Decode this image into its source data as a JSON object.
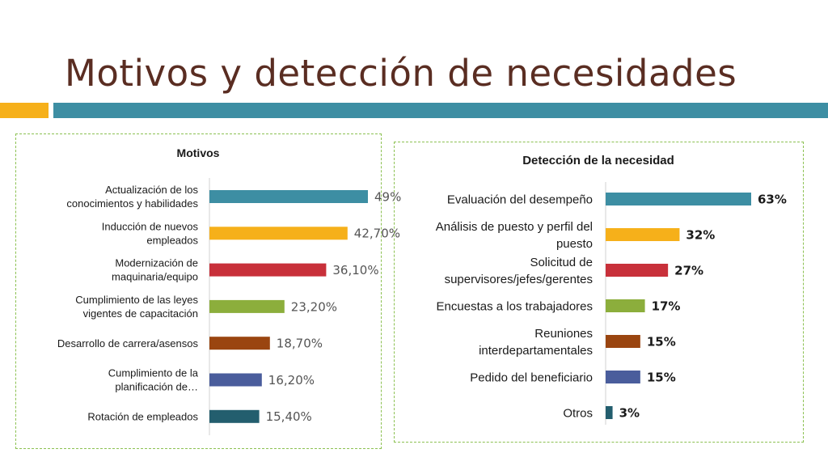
{
  "title": "Motivos y detección de necesidades",
  "colors": {
    "title": "#5a2d22",
    "band_left": "#f6b01a",
    "band_right": "#3d8ea3",
    "panel_border": "#8cc152"
  },
  "chart_data": [
    {
      "type": "bar",
      "orientation": "horizontal",
      "title": "Motivos",
      "categories": [
        [
          "Actualización de los",
          "conocimientos y habilidades"
        ],
        [
          "Inducción de nuevos",
          "empleados"
        ],
        [
          "Modernización de",
          "maquinaria/equipo"
        ],
        [
          "Cumplimiento de las leyes",
          "vigentes de capacitación"
        ],
        [
          "Desarrollo de carrera/asensos"
        ],
        [
          "Cumplimiento de la",
          "planificación de…"
        ],
        [
          "Rotación de empleados"
        ]
      ],
      "values": [
        49,
        42.7,
        36.1,
        23.2,
        18.7,
        16.2,
        15.4
      ],
      "value_labels": [
        "49%",
        "42,70%",
        "36,10%",
        "23,20%",
        "18,70%",
        "16,20%",
        "15,40%"
      ],
      "colors": [
        "#3d8ea3",
        "#f6b01a",
        "#c8303a",
        "#8cae3c",
        "#9a4510",
        "#4a5d9c",
        "#235e6e"
      ],
      "xlim": [
        0,
        100
      ],
      "grid": false,
      "legend": "none"
    },
    {
      "type": "bar",
      "orientation": "horizontal",
      "title": "Detección de la necesidad",
      "categories": [
        [
          "Evaluación del desempeño"
        ],
        [
          "Análisis de puesto y perfil del",
          "puesto"
        ],
        [
          "Solicitud de",
          "supervisores/jefes/gerentes"
        ],
        [
          "Encuestas a los trabajadores"
        ],
        [
          "Reuniones",
          "interdepartamentales"
        ],
        [
          "Pedido del beneficiario"
        ],
        [
          "Otros"
        ]
      ],
      "values": [
        63,
        32,
        27,
        17,
        15,
        15,
        3
      ],
      "value_labels": [
        "63%",
        "32%",
        "27%",
        "17%",
        "15%",
        "15%",
        "3%"
      ],
      "colors": [
        "#3d8ea3",
        "#f6b01a",
        "#c8303a",
        "#8cae3c",
        "#9a4510",
        "#4a5d9c",
        "#235e6e"
      ],
      "xlim": [
        0,
        100
      ],
      "grid": false,
      "legend": "none"
    }
  ]
}
